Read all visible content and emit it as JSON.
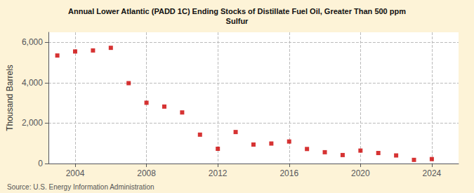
{
  "chart_data": {
    "type": "scatter",
    "title": "Annual Lower Atlantic (PADD 1C) Ending Stocks of Distillate Fuel Oil, Greater Than 500 ppm\nSulfur",
    "y_label": "Thousand Barrels",
    "annotation": "Source: U.S. Energy Information Administration",
    "x": [
      2003,
      2004,
      2005,
      2006,
      2007,
      2008,
      2009,
      2010,
      2011,
      2012,
      2013,
      2014,
      2015,
      2016,
      2017,
      2018,
      2019,
      2020,
      2021,
      2022,
      2023,
      2024
    ],
    "values": [
      5350,
      5550,
      5600,
      5730,
      3980,
      3010,
      2820,
      2530,
      1430,
      730,
      1560,
      940,
      990,
      1090,
      720,
      560,
      420,
      640,
      520,
      400,
      180,
      220
    ],
    "color": "#cc0000",
    "marker": "square",
    "xlim": [
      2002.5,
      2025.5
    ],
    "xticks": [
      2004,
      2008,
      2012,
      2016,
      2020,
      2024
    ],
    "ylim": [
      0,
      6500
    ],
    "yticks": [
      0,
      {
        "value": 2000,
        "label": "2,000"
      },
      {
        "value": 4000,
        "label": "4,000"
      },
      {
        "value": 6000,
        "label": "6,000"
      }
    ],
    "grid": true
  }
}
